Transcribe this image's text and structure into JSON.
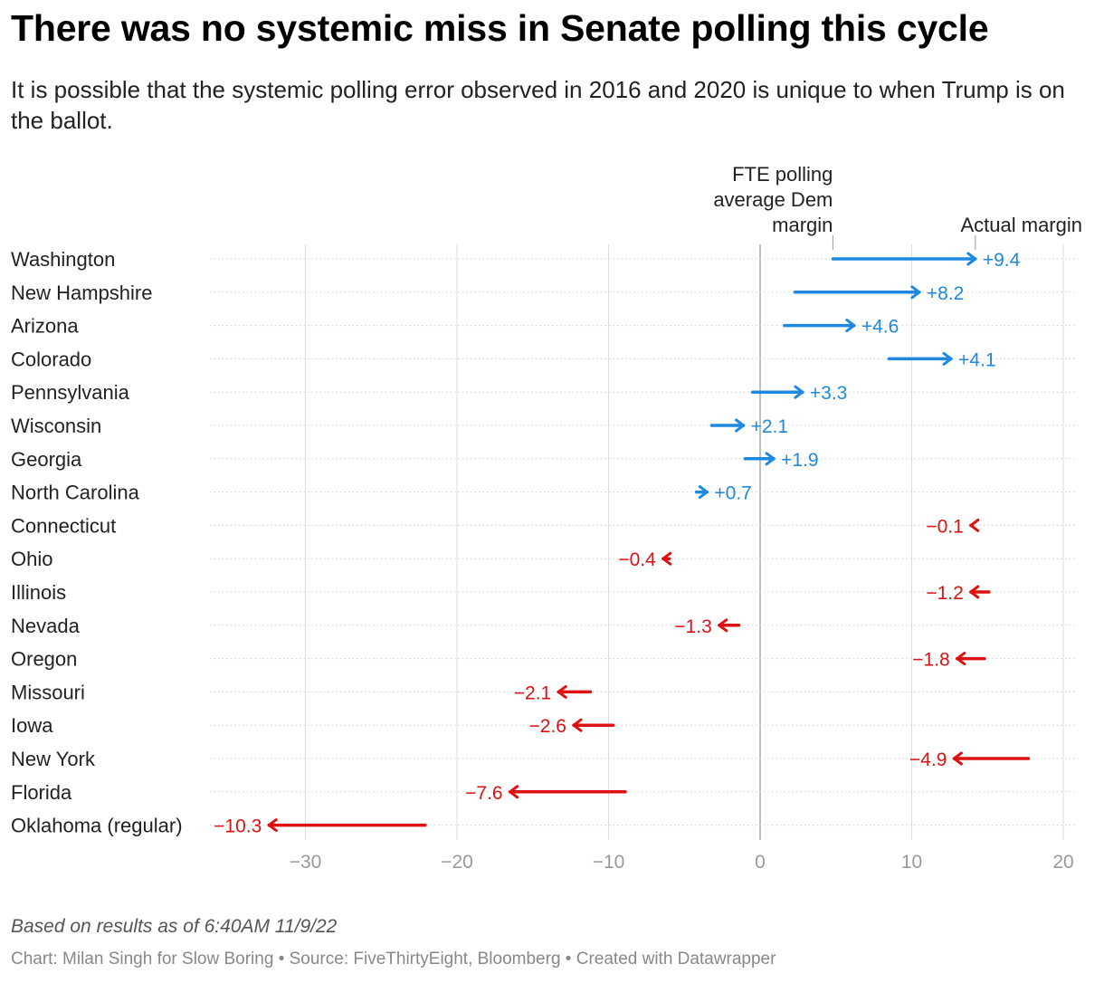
{
  "header": {
    "title": "There was no systemic miss in Senate polling this cycle",
    "subtitle": "It is possible that the systemic polling error observed in 2016 and 2020 is unique to when Trump is on the ballot."
  },
  "footer": {
    "note": "Based on results as of 6:40AM 11/9/22",
    "credit": "Chart: Milan Singh for Slow Boring • Source: FiveThirtyEight, Bloomberg • Created with Datawrapper"
  },
  "colors": {
    "positive": "#1f88e0",
    "negative": "#dd1111",
    "grid": "#dddddd",
    "zero": "#aaaaaa"
  },
  "chart_data": {
    "type": "arrow",
    "xlim": [
      -36,
      20
    ],
    "ticks": [
      -30,
      -20,
      -10,
      0,
      10,
      20
    ],
    "tick_labels": [
      "−30",
      "−20",
      "−10",
      "0",
      "10",
      "20"
    ],
    "annotations": {
      "start": "FTE polling average Dem margin",
      "end": "Actual margin"
    },
    "grid": true,
    "series": [
      {
        "state": "Washington",
        "poll": 4.8,
        "actual": 14.2,
        "label": "+9.4"
      },
      {
        "state": "New Hampshire",
        "poll": 2.3,
        "actual": 10.5,
        "label": "+8.2"
      },
      {
        "state": "Arizona",
        "poll": 1.6,
        "actual": 6.2,
        "label": "+4.6"
      },
      {
        "state": "Colorado",
        "poll": 8.5,
        "actual": 12.6,
        "label": "+4.1"
      },
      {
        "state": "Pennsylvania",
        "poll": -0.5,
        "actual": 2.8,
        "label": "+3.3"
      },
      {
        "state": "Wisconsin",
        "poll": -3.2,
        "actual": -1.1,
        "label": "+2.1"
      },
      {
        "state": "Georgia",
        "poll": -1.0,
        "actual": 0.9,
        "label": "+1.9"
      },
      {
        "state": "North Carolina",
        "poll": -4.2,
        "actual": -3.5,
        "label": "+0.7"
      },
      {
        "state": "Connecticut",
        "poll": 14.0,
        "actual": 13.9,
        "label": "−0.1"
      },
      {
        "state": "Ohio",
        "poll": -6.0,
        "actual": -6.4,
        "label": "−0.4"
      },
      {
        "state": "Illinois",
        "poll": 15.1,
        "actual": 13.9,
        "label": "−1.2"
      },
      {
        "state": "Nevada",
        "poll": -1.4,
        "actual": -2.7,
        "label": "−1.3"
      },
      {
        "state": "Oregon",
        "poll": 14.8,
        "actual": 13.0,
        "label": "−1.8"
      },
      {
        "state": "Missouri",
        "poll": -11.2,
        "actual": -13.3,
        "label": "−2.1"
      },
      {
        "state": "Iowa",
        "poll": -9.7,
        "actual": -12.3,
        "label": "−2.6"
      },
      {
        "state": "New York",
        "poll": 17.7,
        "actual": 12.8,
        "label": "−4.9"
      },
      {
        "state": "Florida",
        "poll": -8.9,
        "actual": -16.5,
        "label": "−7.6"
      },
      {
        "state": "Oklahoma (regular)",
        "poll": -22.1,
        "actual": -32.4,
        "label": "−10.3"
      }
    ]
  }
}
